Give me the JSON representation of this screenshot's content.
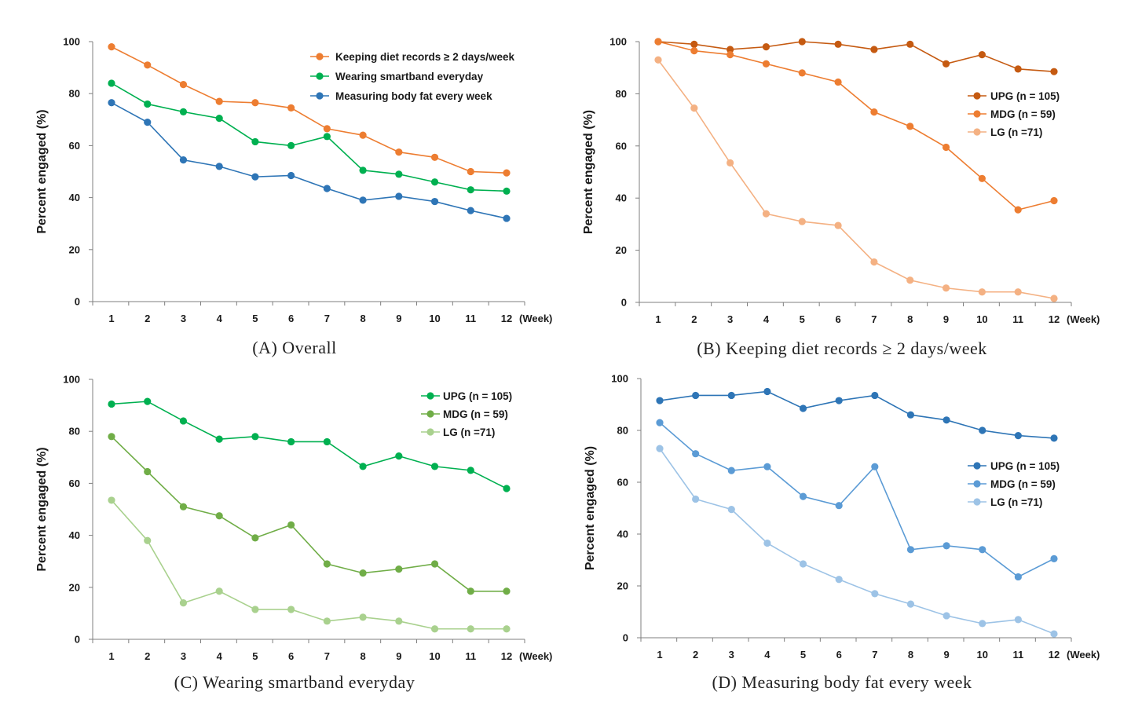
{
  "figure": {
    "x_unit_label": "(Week)",
    "y_axis_title": "Percent engaged (%)"
  },
  "chart_data": [
    {
      "id": "A",
      "type": "line",
      "caption": "(A)  Overall",
      "ylabel": "Percent engaged (%)",
      "xlabel": "(Week)",
      "ylim": [
        0,
        100
      ],
      "yticks": [
        0,
        20,
        40,
        60,
        80,
        100
      ],
      "categories": [
        "1",
        "2",
        "3",
        "4",
        "5",
        "6",
        "7",
        "8",
        "9",
        "10",
        "11",
        "12"
      ],
      "legend_position": "top-right",
      "series": [
        {
          "name": "Keeping diet records ≥ 2 days/week",
          "color": "#ED7D31",
          "values": [
            98,
            91,
            83.5,
            77,
            76.5,
            74.5,
            66.5,
            64,
            57.5,
            55.5,
            50,
            49.5
          ]
        },
        {
          "name": "Wearing smartband everyday",
          "color": "#00B050",
          "values": [
            84,
            76,
            73,
            70.5,
            61.5,
            60,
            63.5,
            50.5,
            49,
            46,
            43,
            42.5
          ]
        },
        {
          "name": "Measuring body fat every week",
          "color": "#2E75B6",
          "values": [
            76.5,
            69,
            54.5,
            52,
            48,
            48.5,
            43.5,
            39,
            40.5,
            38.5,
            35,
            32
          ]
        }
      ]
    },
    {
      "id": "B",
      "type": "line",
      "caption": "(B)  Keeping  diet  records  ≥  2  days/week",
      "ylabel": "Percent engaged (%)",
      "xlabel": "(Week)",
      "ylim": [
        0,
        100
      ],
      "yticks": [
        0,
        20,
        40,
        60,
        80,
        100
      ],
      "categories": [
        "1",
        "2",
        "3",
        "4",
        "5",
        "6",
        "7",
        "8",
        "9",
        "10",
        "11",
        "12"
      ],
      "legend_position": "right",
      "series": [
        {
          "name": "UPG (n = 105)",
          "color": "#C55A11",
          "values": [
            100,
            99,
            97,
            98,
            100,
            99,
            97,
            99,
            91.5,
            95,
            89.5,
            88.5
          ]
        },
        {
          "name": "MDG (n = 59)",
          "color": "#ED7D31",
          "values": [
            100,
            96.5,
            95,
            91.5,
            88,
            84.5,
            73,
            67.5,
            59.5,
            47.5,
            35.5,
            39
          ]
        },
        {
          "name": "LG (n =71)",
          "color": "#F4B183",
          "values": [
            93,
            74.5,
            53.5,
            34,
            31,
            29.5,
            15.5,
            8.5,
            5.5,
            4,
            4,
            1.5
          ]
        }
      ]
    },
    {
      "id": "C",
      "type": "line",
      "caption": "(C)  Wearing  smartband  everyday",
      "ylabel": "Percent engaged (%)",
      "xlabel": "(Week)",
      "ylim": [
        0,
        100
      ],
      "yticks": [
        0,
        20,
        40,
        60,
        80,
        100
      ],
      "categories": [
        "1",
        "2",
        "3",
        "4",
        "5",
        "6",
        "7",
        "8",
        "9",
        "10",
        "11",
        "12"
      ],
      "legend_position": "top-right",
      "series": [
        {
          "name": "UPG (n = 105)",
          "color": "#00B050",
          "values": [
            90.5,
            91.5,
            84,
            77,
            78,
            76,
            76,
            66.5,
            70.5,
            66.5,
            65,
            58
          ]
        },
        {
          "name": "MDG (n = 59)",
          "color": "#70AD47",
          "values": [
            78,
            64.5,
            51,
            47.5,
            39,
            44,
            29,
            25.5,
            27,
            29,
            18.5,
            18.5
          ]
        },
        {
          "name": "LG (n =71)",
          "color": "#A9D18E",
          "values": [
            53.5,
            38,
            14,
            18.5,
            11.5,
            11.5,
            7,
            8.5,
            7,
            4,
            4,
            4
          ]
        }
      ]
    },
    {
      "id": "D",
      "type": "line",
      "caption": "(D)  Measuring  body  fat  every  week",
      "ylabel": "Percent engaged (%)",
      "xlabel": "(Week)",
      "ylim": [
        0,
        100
      ],
      "yticks": [
        0,
        20,
        40,
        60,
        80,
        100
      ],
      "categories": [
        "1",
        "2",
        "3",
        "4",
        "5",
        "6",
        "7",
        "8",
        "9",
        "10",
        "11",
        "12"
      ],
      "legend_position": "right",
      "series": [
        {
          "name": "UPG (n = 105)",
          "color": "#2E75B6",
          "values": [
            91.5,
            93.5,
            93.5,
            95,
            88.5,
            91.5,
            93.5,
            86,
            84,
            80,
            78,
            77
          ]
        },
        {
          "name": "MDG (n = 59)",
          "color": "#5B9BD5",
          "values": [
            83,
            71,
            64.5,
            66,
            54.5,
            51,
            66,
            34,
            35.5,
            34,
            23.5,
            30.5
          ]
        },
        {
          "name": "LG (n =71)",
          "color": "#9DC3E6",
          "values": [
            73,
            53.5,
            49.5,
            36.5,
            28.5,
            22.5,
            17,
            13,
            8.5,
            5.5,
            7,
            1.5
          ]
        }
      ]
    }
  ]
}
